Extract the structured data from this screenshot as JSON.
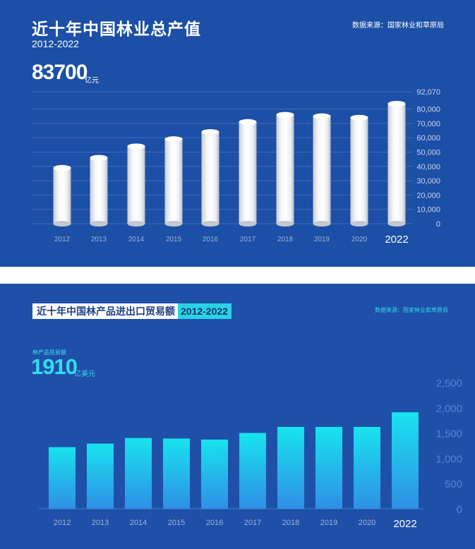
{
  "panel1": {
    "title": "近十年中国林业总产值",
    "years": "2012-2022",
    "source": "数据来源：国家林业和草原局",
    "highlight_value": "83700",
    "highlight_unit": "亿元"
  },
  "panel2": {
    "title": "近十年中国林产品进出口贸易额",
    "years": "2012-2022",
    "source": "数据来源：国家林业和草原局",
    "highlight_label": "林产品贸易额",
    "highlight_value": "1910",
    "highlight_unit": "亿美元"
  },
  "colors": {
    "panel1_bg": "#1c4fa6",
    "panel2_bg": "#1f50a8",
    "bar2_top": "#18e3ee",
    "bar2_bottom": "#2f8fe6",
    "accent_cyan": "#28d3e6"
  },
  "chart_data": [
    {
      "type": "bar",
      "categories": [
        "2012",
        "2013",
        "2014",
        "2015",
        "2016",
        "2017",
        "2018",
        "2019",
        "2020",
        "2022"
      ],
      "values": [
        39000,
        46000,
        54000,
        59000,
        64000,
        71000,
        76000,
        75000,
        74000,
        83700
      ],
      "yticks": [
        "92,070",
        "80,000",
        "70,000",
        "60,000",
        "50,000",
        "40,000",
        "30,000",
        "20,000",
        "10,000",
        "0"
      ],
      "ylim": [
        0,
        92070
      ],
      "grid": true,
      "bar_style": "cylinder"
    },
    {
      "type": "bar",
      "categories": [
        "2012",
        "2013",
        "2014",
        "2015",
        "2016",
        "2017",
        "2018",
        "2019",
        "2020",
        "2022"
      ],
      "values": [
        1220,
        1290,
        1400,
        1390,
        1370,
        1500,
        1620,
        1620,
        1620,
        1910
      ],
      "yticks": [
        "2,500",
        "2,000",
        "1,500",
        "1,000",
        "500",
        "0"
      ],
      "ylim": [
        0,
        2500
      ],
      "grid": false,
      "bar_style": "gradient"
    }
  ]
}
